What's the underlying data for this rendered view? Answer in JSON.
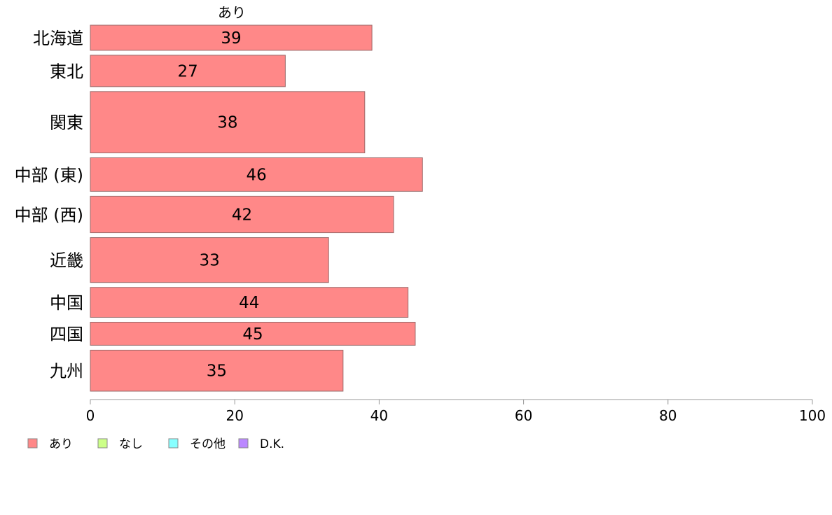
{
  "chart_data": {
    "type": "bar",
    "orientation": "horizontal",
    "series_header": "あり",
    "categories": [
      "北海道",
      "東北",
      "関東",
      "中部 (東)",
      "中部 (西)",
      "近畿",
      "中国",
      "四国",
      "九州"
    ],
    "category_weights": [
      0.84,
      1.05,
      2.05,
      1.12,
      1.22,
      1.5,
      1.0,
      0.77,
      1.37
    ],
    "series": [
      {
        "name": "あり",
        "values": [
          39,
          27,
          38,
          46,
          42,
          33,
          44,
          45,
          35
        ],
        "color": "#ff8888"
      }
    ],
    "data_labels": [
      "39",
      "27",
      "38",
      "46",
      "42",
      "33",
      "44",
      "45",
      "35"
    ],
    "xlim": [
      0,
      100
    ],
    "x_ticks": [
      0,
      20,
      40,
      60,
      80,
      100
    ],
    "x_tick_labels": [
      "0",
      "20",
      "40",
      "60",
      "80",
      "100"
    ],
    "grid": false,
    "legend_position": "bottom-left",
    "legend": [
      {
        "label": "あり",
        "color": "#ff8888"
      },
      {
        "label": "なし",
        "color": "#ccff88"
      },
      {
        "label": "その他",
        "color": "#88ffff"
      },
      {
        "label": "D.K.",
        "color": "#bb88ff"
      }
    ],
    "bar_edge_color": "#9a6a6a",
    "axis_color": "#999999"
  }
}
